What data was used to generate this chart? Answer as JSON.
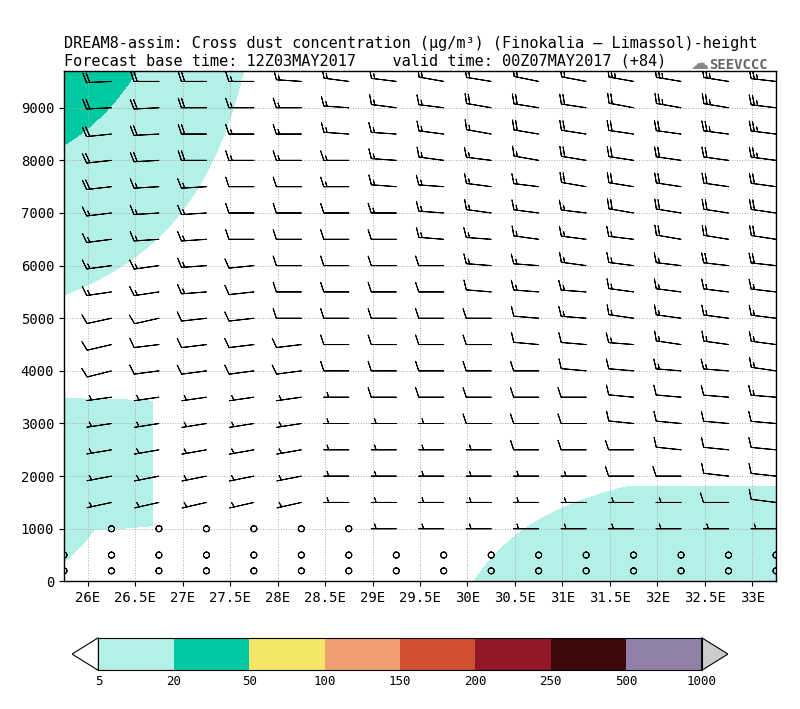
{
  "title_line1": "DREAM8-assim: Cross dust concentration (μg/m³) (Finokalia – Limassol)-height",
  "title_line2": "Forecast base time: 12Z03MAY2017    valid time: 00Z07MAY2017 (+84)",
  "xmin": 25.75,
  "xmax": 33.25,
  "ymin": 0,
  "ymax": 9700,
  "xticks": [
    26,
    26.5,
    27,
    27.5,
    28,
    28.5,
    29,
    29.5,
    30,
    30.5,
    31,
    31.5,
    32,
    32.5,
    33
  ],
  "yticks": [
    0,
    1000,
    2000,
    3000,
    4000,
    5000,
    6000,
    7000,
    8000,
    9000
  ],
  "colorbar_levels": [
    5,
    20,
    50,
    100,
    150,
    200,
    250,
    500,
    1000
  ],
  "colorbar_colors": [
    "#b2f0e8",
    "#00c8a0",
    "#f5e668",
    "#f0a070",
    "#d05030",
    "#901828",
    "#3c0808",
    "#9080a8"
  ],
  "bg_color": "#ffffff",
  "logo_text": "SEEVCCC",
  "title_fontsize": 11,
  "tick_fontsize": 10
}
